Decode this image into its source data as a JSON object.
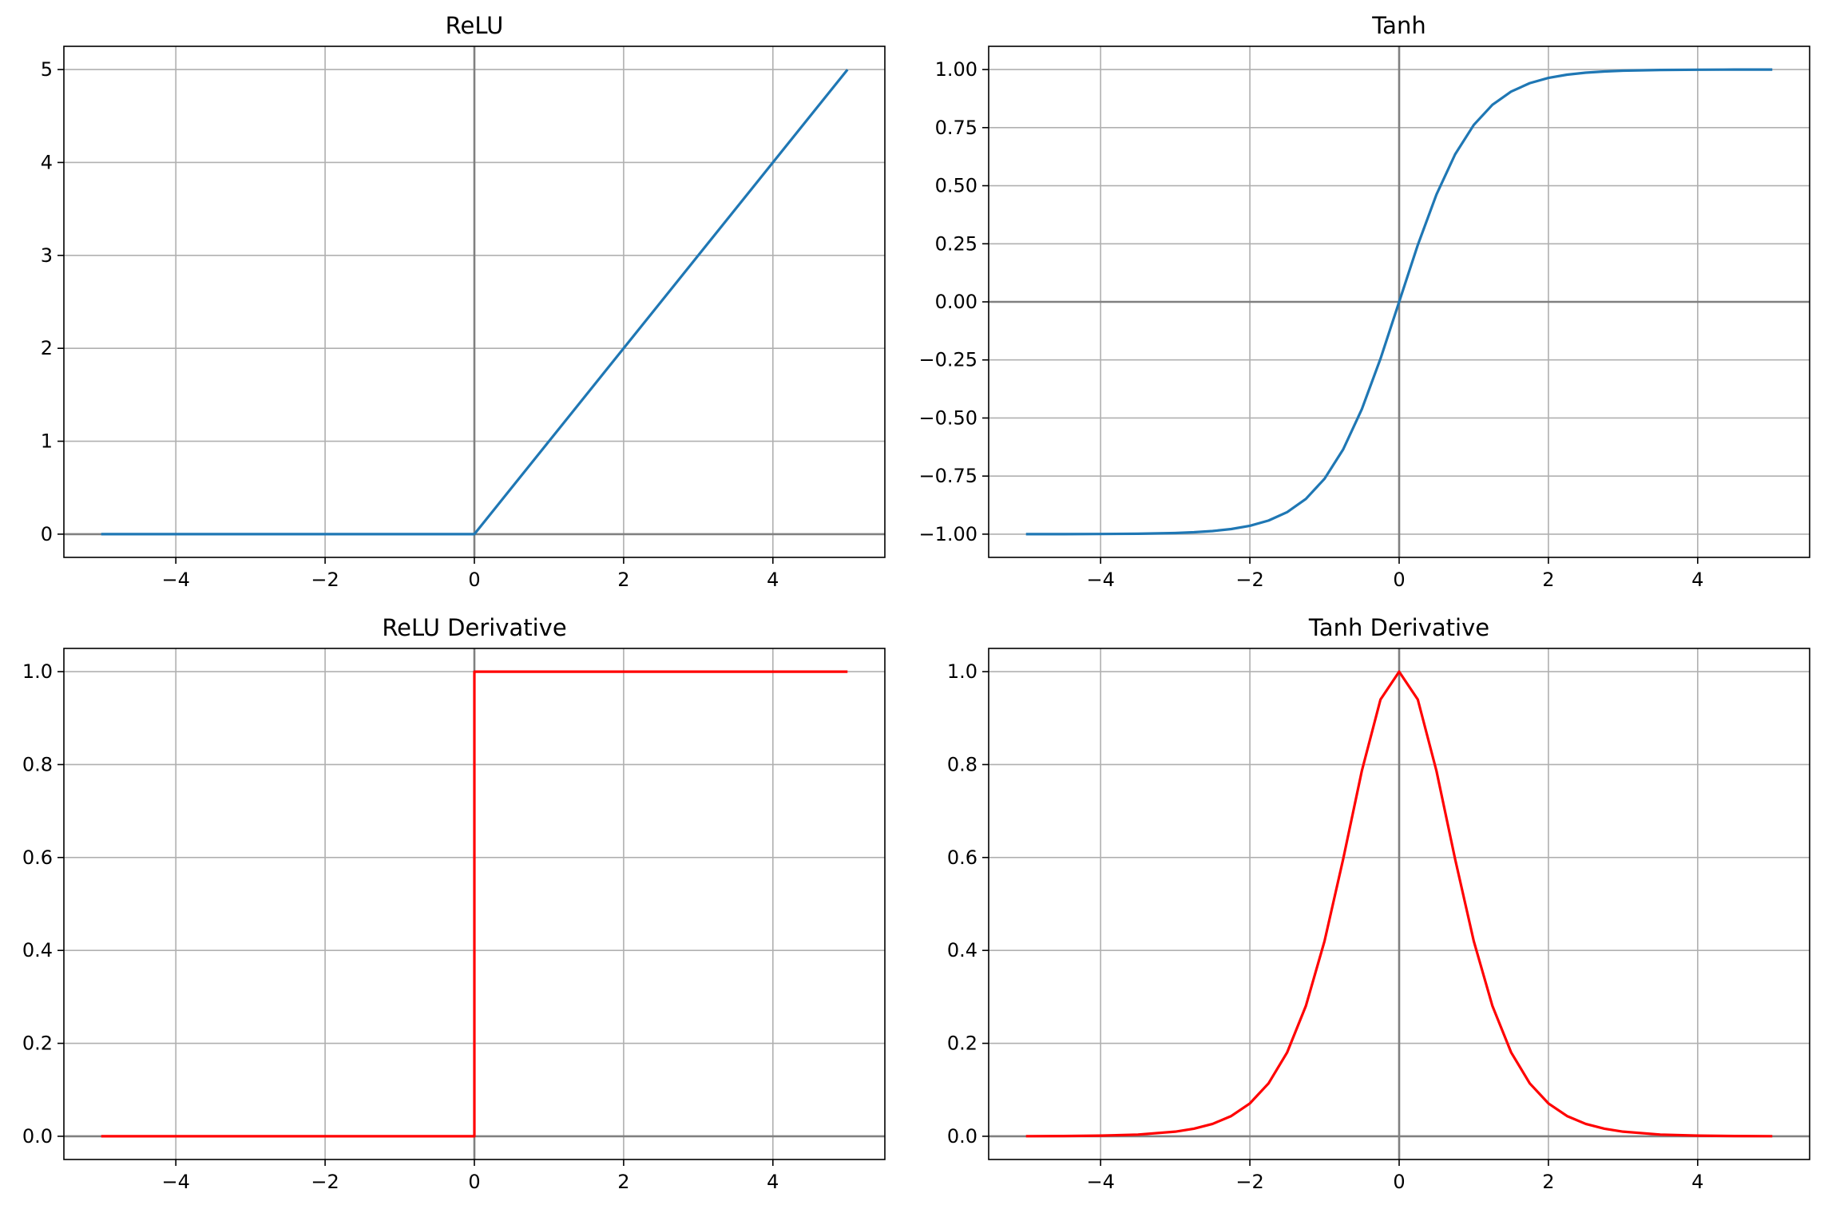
{
  "figure": {
    "background": "#ffffff"
  },
  "chart_data": [
    {
      "type": "line",
      "title": "ReLU",
      "xlabel": "",
      "ylabel": "",
      "xlim": [
        -5.5,
        5.5
      ],
      "ylim": [
        -0.25,
        5.25
      ],
      "xticks": [
        -4,
        -2,
        0,
        2,
        4
      ],
      "xtick_labels": [
        "−4",
        "−2",
        "0",
        "2",
        "4"
      ],
      "yticks": [
        0,
        1,
        2,
        3,
        4,
        5
      ],
      "ytick_labels": [
        "0",
        "1",
        "2",
        "3",
        "4",
        "5"
      ],
      "grid": true,
      "reference_lines": {
        "x": 0,
        "y": 0,
        "color": "#808080"
      },
      "series": [
        {
          "color": "#1f77b4",
          "x": [
            -5,
            0,
            5
          ],
          "y": [
            0,
            0,
            5
          ]
        }
      ]
    },
    {
      "type": "line",
      "title": "Tanh",
      "xlabel": "",
      "ylabel": "",
      "xlim": [
        -5.5,
        5.5
      ],
      "ylim": [
        -1.1,
        1.1
      ],
      "xticks": [
        -4,
        -2,
        0,
        2,
        4
      ],
      "xtick_labels": [
        "−4",
        "−2",
        "0",
        "2",
        "4"
      ],
      "yticks": [
        -1,
        -0.75,
        -0.5,
        -0.25,
        0,
        0.25,
        0.5,
        0.75,
        1
      ],
      "ytick_labels": [
        "−1.00",
        "−0.75",
        "−0.50",
        "−0.25",
        "0.00",
        "0.25",
        "0.50",
        "0.75",
        "1.00"
      ],
      "grid": true,
      "reference_lines": {
        "x": 0,
        "y": 0,
        "color": "#808080"
      },
      "series": [
        {
          "color": "#1f77b4",
          "x": [
            -5,
            -4.5,
            -4,
            -3.5,
            -3,
            -2.75,
            -2.5,
            -2.25,
            -2,
            -1.75,
            -1.5,
            -1.25,
            -1,
            -0.75,
            -0.5,
            -0.25,
            0,
            0.25,
            0.5,
            0.75,
            1,
            1.25,
            1.5,
            1.75,
            2,
            2.25,
            2.5,
            2.75,
            3,
            3.5,
            4,
            4.5,
            5
          ],
          "y": [
            -0.9999,
            -0.9998,
            -0.9993,
            -0.9982,
            -0.9951,
            -0.9918,
            -0.9866,
            -0.978,
            -0.964,
            -0.9414,
            -0.9051,
            -0.8483,
            -0.7616,
            -0.6351,
            -0.4621,
            -0.2449,
            0,
            0.2449,
            0.4621,
            0.6351,
            0.7616,
            0.8483,
            0.9051,
            0.9414,
            0.964,
            0.978,
            0.9866,
            0.9918,
            0.9951,
            0.9982,
            0.9993,
            0.9998,
            0.9999
          ]
        }
      ]
    },
    {
      "type": "line",
      "title": "ReLU Derivative",
      "xlabel": "",
      "ylabel": "",
      "xlim": [
        -5.5,
        5.5
      ],
      "ylim": [
        -0.05,
        1.05
      ],
      "xticks": [
        -4,
        -2,
        0,
        2,
        4
      ],
      "xtick_labels": [
        "−4",
        "−2",
        "0",
        "2",
        "4"
      ],
      "yticks": [
        0,
        0.2,
        0.4,
        0.6,
        0.8,
        1.0
      ],
      "ytick_labels": [
        "0.0",
        "0.2",
        "0.4",
        "0.6",
        "0.8",
        "1.0"
      ],
      "grid": true,
      "reference_lines": {
        "x": 0,
        "y": 0,
        "color": "#808080"
      },
      "series": [
        {
          "color": "#ff0000",
          "x": [
            -5,
            0,
            0,
            5
          ],
          "y": [
            0,
            0,
            1,
            1
          ]
        }
      ]
    },
    {
      "type": "line",
      "title": "Tanh Derivative",
      "xlabel": "",
      "ylabel": "",
      "xlim": [
        -5.5,
        5.5
      ],
      "ylim": [
        -0.05,
        1.05
      ],
      "xticks": [
        -4,
        -2,
        0,
        2,
        4
      ],
      "xtick_labels": [
        "−4",
        "−2",
        "0",
        "2",
        "4"
      ],
      "yticks": [
        0,
        0.2,
        0.4,
        0.6,
        0.8,
        1.0
      ],
      "ytick_labels": [
        "0.0",
        "0.2",
        "0.4",
        "0.6",
        "0.8",
        "1.0"
      ],
      "grid": true,
      "reference_lines": {
        "x": 0,
        "y": 0,
        "color": "#808080"
      },
      "series": [
        {
          "color": "#ff0000",
          "x": [
            -5,
            -4.5,
            -4,
            -3.5,
            -3,
            -2.75,
            -2.5,
            -2.25,
            -2,
            -1.75,
            -1.5,
            -1.25,
            -1,
            -0.75,
            -0.5,
            -0.25,
            0,
            0.25,
            0.5,
            0.75,
            1,
            1.25,
            1.5,
            1.75,
            2,
            2.25,
            2.5,
            2.75,
            3,
            3.5,
            4,
            4.5,
            5
          ],
          "y": [
            0.0002,
            0.0005,
            0.0013,
            0.0036,
            0.0099,
            0.0163,
            0.0266,
            0.0435,
            0.0707,
            0.1138,
            0.1807,
            0.2804,
            0.42,
            0.5966,
            0.7864,
            0.94,
            1.0,
            0.94,
            0.7864,
            0.5966,
            0.42,
            0.2804,
            0.1807,
            0.1138,
            0.0707,
            0.0435,
            0.0266,
            0.0163,
            0.0099,
            0.0036,
            0.0013,
            0.0005,
            0.0002
          ]
        }
      ]
    }
  ]
}
